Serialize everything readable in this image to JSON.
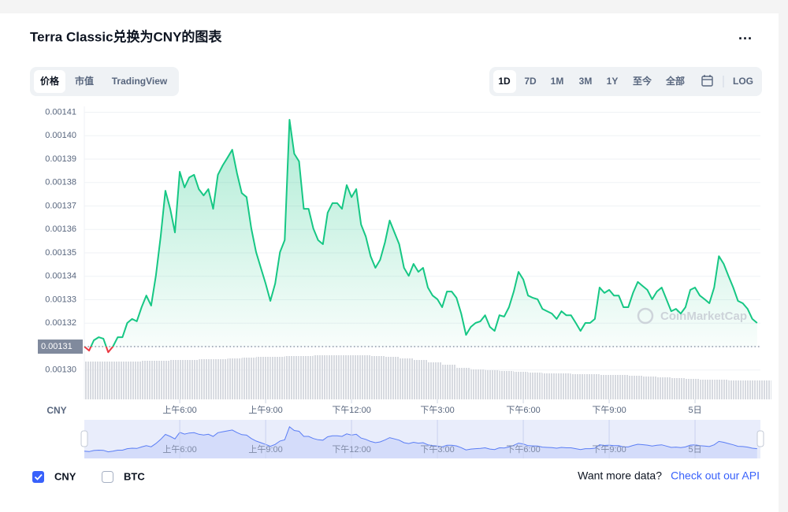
{
  "chart_data": {
    "type": "line",
    "title": "Terra Classic兑换为CNY的图表",
    "tabs": [
      "价格",
      "市值",
      "TradingView"
    ],
    "ranges": [
      "1D",
      "7D",
      "1M",
      "3M",
      "1Y",
      "至今",
      "全部"
    ],
    "log_button": "LOG",
    "y_unit": "CNY",
    "x": [
      160,
      170,
      180,
      190,
      200,
      210,
      220,
      230,
      240,
      250,
      260,
      270,
      280,
      290,
      300,
      310,
      320,
      330,
      340,
      350,
      360,
      370,
      380,
      390,
      400,
      410,
      420,
      430,
      440,
      450,
      460,
      470,
      480,
      490,
      500,
      510,
      520,
      530,
      540,
      550,
      560,
      570,
      580,
      590,
      600,
      610,
      620,
      630,
      640,
      650,
      660,
      670,
      680,
      690,
      700,
      710,
      720,
      730,
      740,
      750,
      760,
      770,
      780,
      790,
      800,
      810,
      820,
      830,
      840,
      850,
      860,
      870,
      880,
      890,
      900,
      910,
      920,
      930,
      940,
      950,
      960,
      970,
      980,
      990,
      1000,
      1010,
      1020,
      1030,
      1040,
      1050,
      1060,
      1070,
      1080,
      1090,
      1100,
      1110,
      1120,
      1130,
      1140,
      1150,
      1160,
      1170,
      1180,
      1190,
      1200,
      1210,
      1220,
      1230,
      1240,
      1250,
      1260,
      1270,
      1280,
      1290,
      1300,
      1310,
      1320,
      1330,
      1340,
      1350,
      1360,
      1370,
      1380,
      1390,
      1400,
      1410,
      1420,
      1430,
      1440,
      1450,
      1460,
      1470,
      1480,
      1490,
      1500,
      1510,
      1520,
      1530,
      1540,
      1550,
      1560,
      1570
    ],
    "series": [
      {
        "name": "CNY",
        "color": "#16c784",
        "checked": true,
        "values": [
          0.00131,
          0.0013083,
          0.0013127,
          0.001314,
          0.0013134,
          0.0013076,
          0.00131,
          0.001314,
          0.001314,
          0.0013201,
          0.0013218,
          0.0013208,
          0.0013268,
          0.0013318,
          0.0013275,
          0.0013402,
          0.001357,
          0.0013765,
          0.0013688,
          0.0013587,
          0.0013846,
          0.0013779,
          0.0013822,
          0.0013833,
          0.0013772,
          0.0013745,
          0.0013772,
          0.0013688,
          0.0013833,
          0.0013873,
          0.0013906,
          0.001394,
          0.0013839,
          0.0013755,
          0.0013738,
          0.0013604,
          0.0013503,
          0.0013436,
          0.0013369,
          0.0013295,
          0.0013369,
          0.0013503,
          0.0013554,
          0.0014068,
          0.0013923,
          0.001389,
          0.0013688,
          0.0013688,
          0.0013604,
          0.0013554,
          0.0013537,
          0.0013671,
          0.0013712,
          0.0013712,
          0.0013688,
          0.0013789,
          0.0013738,
          0.0013772,
          0.0013621,
          0.001357,
          0.0013486,
          0.0013436,
          0.001347,
          0.0013544,
          0.0013638,
          0.0013587,
          0.0013537,
          0.0013436,
          0.0013402,
          0.0013453,
          0.0013419,
          0.0013436,
          0.0013352,
          0.0013318,
          0.0013302,
          0.0013268,
          0.0013335,
          0.0013335,
          0.0013308,
          0.0013241,
          0.001315,
          0.0013184,
          0.0013201,
          0.0013208,
          0.0013234,
          0.0013184,
          0.0013167,
          0.0013234,
          0.0013228,
          0.0013268,
          0.0013335,
          0.0013419,
          0.0013386,
          0.0013318,
          0.0013308,
          0.0013302,
          0.0013261,
          0.0013251,
          0.0013241,
          0.0013218,
          0.0013251,
          0.0013234,
          0.0013234,
          0.0013201,
          0.0013167,
          0.0013201,
          0.0013201,
          0.0013218,
          0.0013352,
          0.0013329,
          0.0013342,
          0.0013318,
          0.0013318,
          0.0013268,
          0.0013268,
          0.0013329,
          0.0013376,
          0.0013359,
          0.0013342,
          0.0013302,
          0.0013335,
          0.0013352,
          0.0013302,
          0.0013251,
          0.0013261,
          0.0013241,
          0.0013268,
          0.0013342,
          0.0013352,
          0.0013318,
          0.0013302,
          0.0013285,
          0.0013352,
          0.0013486,
          0.0013453,
          0.0013402,
          0.0013352,
          0.0013295,
          0.0013285,
          0.0013261,
          0.0013218,
          0.0013201
        ]
      }
    ],
    "down_color": "#ea3943",
    "baseline": 0.00131,
    "compare": {
      "name": "BTC",
      "checked": false
    },
    "xlim": [
      160,
      1577
    ],
    "xticks": [
      {
        "value": 360,
        "label": "上午6:00"
      },
      {
        "value": 540,
        "label": "上午9:00"
      },
      {
        "value": 720,
        "label": "下午12:00"
      },
      {
        "value": 900,
        "label": "下午3:00"
      },
      {
        "value": 1080,
        "label": "下午6:00"
      },
      {
        "value": 1260,
        "label": "下午9:00"
      },
      {
        "value": 1440,
        "label": "5日"
      }
    ],
    "ylim": [
      0.0012875,
      0.0014125
    ],
    "yticks": [
      {
        "value": 0.0013,
        "label": "0.00130"
      },
      0.00131,
      0.00132,
      0.00133,
      0.00134,
      0.00135,
      0.00136,
      0.00137,
      0.00138,
      0.00139,
      {
        "value": 0.0014,
        "label": "0.00140"
      },
      0.00141
    ],
    "grid": true,
    "volume": {
      "lim": [
        0,
        60
      ],
      "values": [
        48,
        48,
        48,
        48,
        49,
        49,
        50,
        50,
        51,
        51,
        52,
        53,
        54,
        54,
        55,
        55,
        56,
        56,
        56,
        56,
        55,
        54,
        52,
        50,
        47,
        44,
        40,
        38,
        37,
        36,
        35,
        34,
        33,
        33,
        32,
        32,
        31,
        31,
        30,
        29,
        28,
        27,
        26,
        25,
        25,
        24,
        24,
        24
      ]
    },
    "watermark": "CoinMarketCap",
    "footer": {
      "text": "Want more data?",
      "link": "Check out our API"
    }
  }
}
